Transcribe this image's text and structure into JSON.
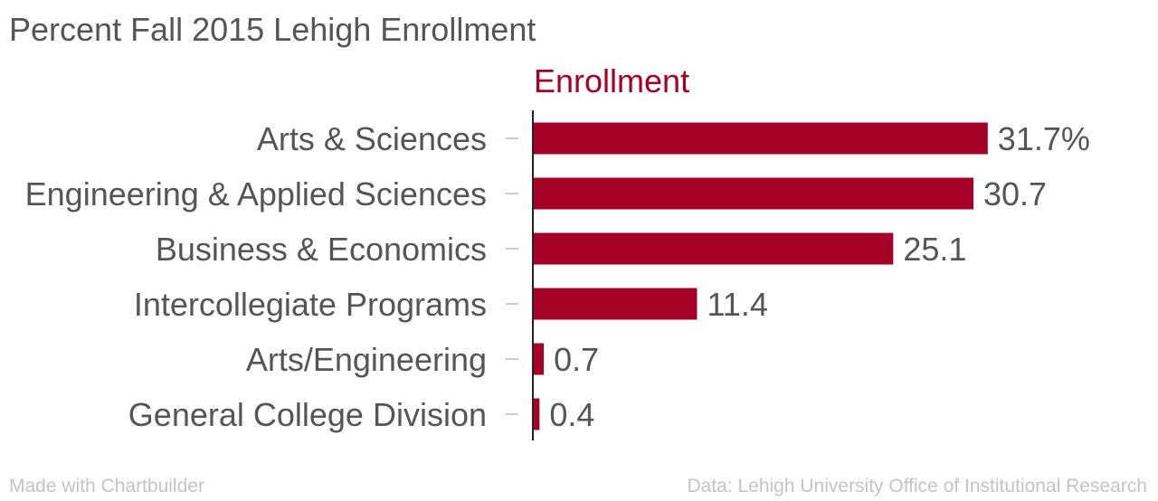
{
  "chart_data": {
    "type": "bar",
    "orientation": "horizontal",
    "title": "Percent Fall 2015 Lehigh Enrollment",
    "categories": [
      "Arts & Sciences",
      "Engineering & Applied Sciences",
      "Business & Economics",
      "Intercollegiate Programs",
      "Arts/Engineering",
      "General College Division"
    ],
    "series": [
      {
        "name": "Enrollment",
        "values": [
          31.7,
          30.7,
          25.1,
          11.4,
          0.7,
          0.4
        ],
        "value_labels": [
          "31.7%",
          "30.7",
          "25.1",
          "11.4",
          "0.7",
          "0.4"
        ],
        "color": "#a50026"
      }
    ],
    "xlabel": "",
    "ylabel": "",
    "grid": false,
    "legend": "top"
  },
  "footer": {
    "credit": "Made with Chartbuilder",
    "source": "Data: Lehigh University Office of Institutional Research"
  },
  "colors": {
    "bar": "#a50026",
    "text": "#555555",
    "footer_text": "#c4c4c4"
  }
}
